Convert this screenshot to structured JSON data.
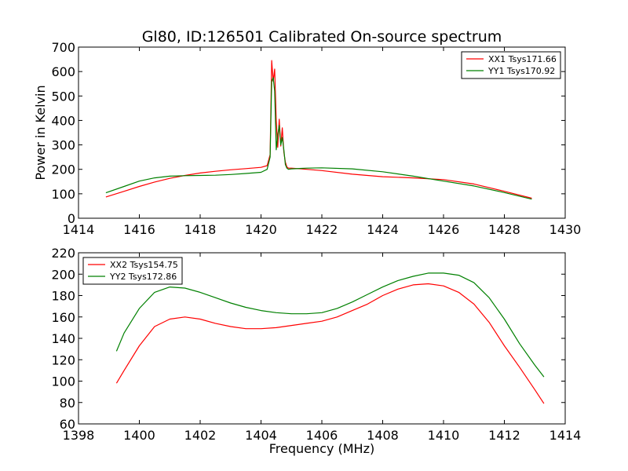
{
  "title": "Gl80, ID:126501 Calibrated On-source spectrum",
  "colors": {
    "xx": "#ff0000",
    "yy": "#008000"
  },
  "chart_data": [
    {
      "type": "line",
      "ylabel": "Power in Kelvin",
      "xlabel": "",
      "xlim": [
        1414,
        1430
      ],
      "ylim": [
        0,
        700
      ],
      "xticks": [
        1414,
        1416,
        1418,
        1420,
        1422,
        1424,
        1426,
        1428,
        1430
      ],
      "yticks": [
        0,
        100,
        200,
        300,
        400,
        500,
        600,
        700
      ],
      "legend": "top-right",
      "series": [
        {
          "name": "XX1 Tsys171.66",
          "color": "#ff0000",
          "x": [
            1414.9,
            1415.5,
            1416.0,
            1416.5,
            1417.0,
            1417.5,
            1418.0,
            1418.5,
            1419.0,
            1419.5,
            1420.0,
            1420.2,
            1420.3,
            1420.35,
            1420.4,
            1420.45,
            1420.5,
            1420.55,
            1420.6,
            1420.65,
            1420.7,
            1420.75,
            1420.8,
            1420.85,
            1420.9,
            1421.0,
            1421.5,
            1422.0,
            1423.0,
            1424.0,
            1425.0,
            1426.0,
            1427.0,
            1428.0,
            1428.9
          ],
          "y": [
            87,
            110,
            130,
            148,
            163,
            175,
            185,
            192,
            198,
            203,
            208,
            215,
            260,
            645,
            560,
            610,
            400,
            290,
            405,
            295,
            370,
            270,
            230,
            210,
            205,
            205,
            200,
            195,
            180,
            170,
            165,
            158,
            140,
            110,
            82
          ]
        },
        {
          "name": "YY1 Tsys170.92",
          "color": "#008000",
          "x": [
            1414.9,
            1415.5,
            1416.0,
            1416.5,
            1417.0,
            1417.5,
            1418.0,
            1418.5,
            1419.0,
            1419.5,
            1420.0,
            1420.2,
            1420.3,
            1420.35,
            1420.4,
            1420.45,
            1420.5,
            1420.55,
            1420.6,
            1420.65,
            1420.7,
            1420.75,
            1420.8,
            1420.85,
            1420.9,
            1421.0,
            1421.5,
            1422.0,
            1423.0,
            1424.0,
            1425.0,
            1426.0,
            1427.0,
            1428.0,
            1428.9
          ],
          "y": [
            104,
            130,
            152,
            165,
            172,
            174,
            175,
            176,
            179,
            183,
            188,
            200,
            250,
            560,
            575,
            520,
            280,
            340,
            380,
            300,
            330,
            280,
            220,
            205,
            200,
            202,
            205,
            206,
            202,
            190,
            172,
            152,
            132,
            105,
            78
          ]
        }
      ]
    },
    {
      "type": "line",
      "ylabel": "",
      "xlabel": "Frequency (MHz)",
      "xlim": [
        1398,
        1414
      ],
      "ylim": [
        60,
        220
      ],
      "xticks": [
        1398,
        1400,
        1402,
        1404,
        1406,
        1408,
        1410,
        1412,
        1414
      ],
      "yticks": [
        60,
        80,
        100,
        120,
        140,
        160,
        180,
        200,
        220
      ],
      "legend": "top-left",
      "series": [
        {
          "name": "XX2 Tsys154.75",
          "color": "#ff0000",
          "x": [
            1399.25,
            1399.5,
            1400.0,
            1400.5,
            1401.0,
            1401.5,
            1402.0,
            1402.5,
            1403.0,
            1403.5,
            1404.0,
            1404.5,
            1405.0,
            1405.5,
            1406.0,
            1406.5,
            1407.0,
            1407.5,
            1408.0,
            1408.5,
            1409.0,
            1409.5,
            1410.0,
            1410.5,
            1411.0,
            1411.5,
            1412.0,
            1412.5,
            1413.0,
            1413.3
          ],
          "y": [
            98,
            110,
            133,
            151,
            158,
            160,
            158,
            154,
            151,
            149,
            149,
            150,
            152,
            154,
            156,
            160,
            166,
            172,
            180,
            186,
            190,
            191,
            189,
            183,
            172,
            155,
            133,
            113,
            92,
            79
          ]
        },
        {
          "name": "YY2 Tsys172.86",
          "color": "#008000",
          "x": [
            1399.25,
            1399.5,
            1400.0,
            1400.5,
            1401.0,
            1401.5,
            1402.0,
            1402.5,
            1403.0,
            1403.5,
            1404.0,
            1404.5,
            1405.0,
            1405.5,
            1406.0,
            1406.5,
            1407.0,
            1407.5,
            1408.0,
            1408.5,
            1409.0,
            1409.5,
            1410.0,
            1410.5,
            1411.0,
            1411.5,
            1412.0,
            1412.5,
            1413.0,
            1413.3
          ],
          "y": [
            128,
            145,
            168,
            183,
            188,
            187,
            183,
            178,
            173,
            169,
            166,
            164,
            163,
            163,
            164,
            168,
            174,
            181,
            188,
            194,
            198,
            201,
            201,
            199,
            192,
            178,
            158,
            135,
            115,
            104
          ]
        }
      ]
    }
  ]
}
